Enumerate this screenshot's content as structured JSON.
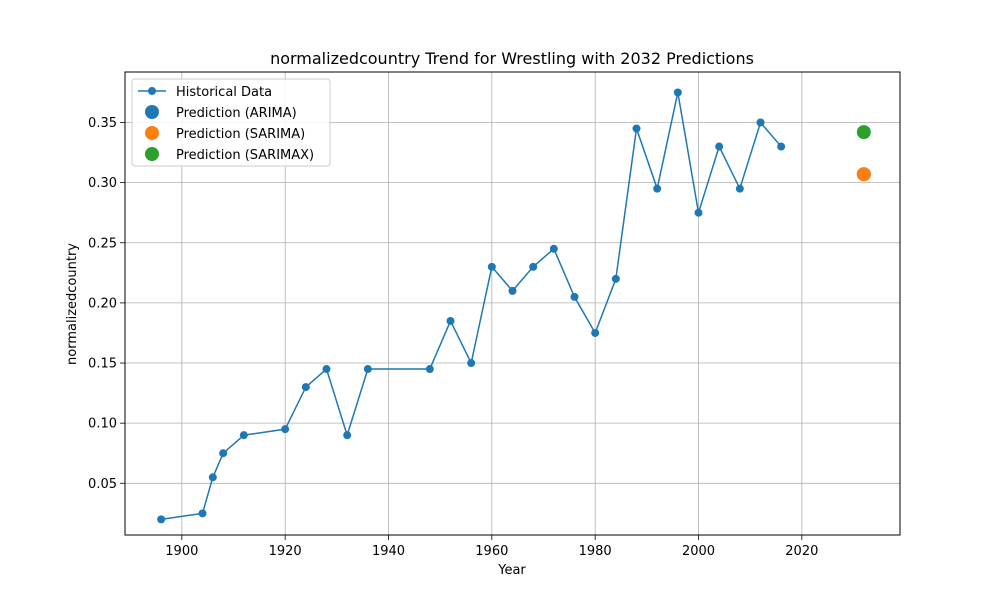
{
  "chart_data": {
    "type": "line",
    "title": "normalizedcountry Trend for Wrestling with 2032 Predictions",
    "xlabel": "Year",
    "ylabel": "normalizedcountry",
    "xlim": [
      1889,
      2039
    ],
    "ylim": [
      0.007,
      0.392
    ],
    "xticks": [
      1900,
      1920,
      1940,
      1960,
      1980,
      2000,
      2020
    ],
    "yticks": [
      0.05,
      0.1,
      0.15,
      0.2,
      0.25,
      0.3,
      0.35
    ],
    "grid": true,
    "legend_position": "top-left",
    "series": [
      {
        "name": "Historical Data",
        "color": "#1f77b4",
        "marker": "circle",
        "x": [
          1896,
          1904,
          1906,
          1908,
          1912,
          1920,
          1924,
          1928,
          1932,
          1936,
          1948,
          1952,
          1956,
          1960,
          1964,
          1968,
          1972,
          1976,
          1980,
          1984,
          1988,
          1992,
          1996,
          2000,
          2004,
          2008,
          2012,
          2016
        ],
        "y": [
          0.02,
          0.025,
          0.055,
          0.075,
          0.09,
          0.095,
          0.13,
          0.145,
          0.09,
          0.145,
          0.145,
          0.185,
          0.15,
          0.23,
          0.21,
          0.23,
          0.245,
          0.205,
          0.175,
          0.22,
          0.345,
          0.295,
          0.375,
          0.275,
          0.33,
          0.295,
          0.35,
          0.33
        ]
      }
    ],
    "predictions": [
      {
        "name": "Prediction (ARIMA)",
        "color": "#1f77b4",
        "x": 2032,
        "y": 0.307
      },
      {
        "name": "Prediction (SARIMA)",
        "color": "#ff7f0e",
        "x": 2032,
        "y": 0.307
      },
      {
        "name": "Prediction (SARIMAX)",
        "color": "#2ca02c",
        "x": 2032,
        "y": 0.342
      }
    ]
  }
}
